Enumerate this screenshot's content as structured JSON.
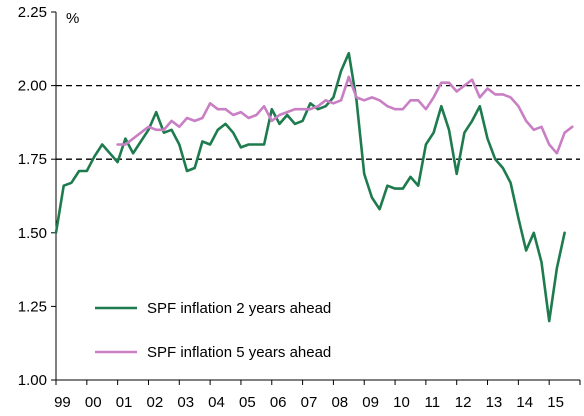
{
  "chart_data": {
    "type": "line",
    "ylabel": "%",
    "ylim": [
      1.0,
      2.25
    ],
    "y_ticks": [
      "1.00",
      "1.25",
      "1.50",
      "1.75",
      "2.00",
      "2.25"
    ],
    "x_ticks": [
      "99",
      "00",
      "01",
      "02",
      "03",
      "04",
      "05",
      "06",
      "07",
      "08",
      "09",
      "10",
      "11",
      "12",
      "13",
      "14",
      "15"
    ],
    "x_range": [
      1999.0,
      2016.0
    ],
    "reference_lines": [
      1.75,
      2.0
    ],
    "legend_position": "lower-left",
    "series": [
      {
        "name": "SPF inflation 2 years ahead",
        "color": "#1e7b4e",
        "x": [
          1999.0,
          1999.25,
          1999.5,
          1999.75,
          2000.0,
          2000.25,
          2000.5,
          2000.75,
          2001.0,
          2001.25,
          2001.5,
          2001.75,
          2002.0,
          2002.25,
          2002.5,
          2002.75,
          2003.0,
          2003.25,
          2003.5,
          2003.75,
          2004.0,
          2004.25,
          2004.5,
          2004.75,
          2005.0,
          2005.25,
          2005.5,
          2005.75,
          2006.0,
          2006.25,
          2006.5,
          2006.75,
          2007.0,
          2007.25,
          2007.5,
          2007.75,
          2008.0,
          2008.25,
          2008.5,
          2008.75,
          2009.0,
          2009.25,
          2009.5,
          2009.75,
          2010.0,
          2010.25,
          2010.5,
          2010.75,
          2011.0,
          2011.25,
          2011.5,
          2011.75,
          2012.0,
          2012.25,
          2012.5,
          2012.75,
          2013.0,
          2013.25,
          2013.5,
          2013.75,
          2014.0,
          2014.25,
          2014.5,
          2014.75,
          2015.0,
          2015.25,
          2015.5
        ],
        "values": [
          1.5,
          1.66,
          1.67,
          1.71,
          1.71,
          1.76,
          1.8,
          1.77,
          1.74,
          1.82,
          1.77,
          1.81,
          1.85,
          1.91,
          1.84,
          1.85,
          1.8,
          1.71,
          1.72,
          1.81,
          1.8,
          1.85,
          1.87,
          1.84,
          1.79,
          1.8,
          1.8,
          1.8,
          1.92,
          1.87,
          1.9,
          1.87,
          1.88,
          1.94,
          1.92,
          1.93,
          1.96,
          2.05,
          2.11,
          1.95,
          1.7,
          1.62,
          1.58,
          1.66,
          1.65,
          1.65,
          1.69,
          1.66,
          1.8,
          1.84,
          1.93,
          1.85,
          1.7,
          1.84,
          1.88,
          1.93,
          1.82,
          1.75,
          1.72,
          1.67,
          1.55,
          1.44,
          1.5,
          1.4,
          1.2,
          1.38,
          1.5
        ]
      },
      {
        "name": "SPF inflation 5 years ahead",
        "color": "#c97fc4",
        "x": [
          2001.0,
          2001.25,
          2001.5,
          2001.75,
          2002.0,
          2002.25,
          2002.5,
          2002.75,
          2003.0,
          2003.25,
          2003.5,
          2003.75,
          2004.0,
          2004.25,
          2004.5,
          2004.75,
          2005.0,
          2005.25,
          2005.5,
          2005.75,
          2006.0,
          2006.25,
          2006.5,
          2006.75,
          2007.0,
          2007.25,
          2007.5,
          2007.75,
          2008.0,
          2008.25,
          2008.5,
          2008.75,
          2009.0,
          2009.25,
          2009.5,
          2009.75,
          2010.0,
          2010.25,
          2010.5,
          2010.75,
          2011.0,
          2011.25,
          2011.5,
          2011.75,
          2012.0,
          2012.25,
          2012.5,
          2012.75,
          2013.0,
          2013.25,
          2013.5,
          2013.75,
          2014.0,
          2014.25,
          2014.5,
          2014.75,
          2015.0,
          2015.25,
          2015.5,
          2015.75
        ],
        "values": [
          1.8,
          1.8,
          1.82,
          1.84,
          1.86,
          1.85,
          1.85,
          1.88,
          1.86,
          1.89,
          1.88,
          1.89,
          1.94,
          1.92,
          1.92,
          1.9,
          1.91,
          1.89,
          1.9,
          1.93,
          1.88,
          1.9,
          1.91,
          1.92,
          1.92,
          1.92,
          1.93,
          1.95,
          1.94,
          1.95,
          2.03,
          1.96,
          1.95,
          1.96,
          1.95,
          1.93,
          1.92,
          1.92,
          1.95,
          1.95,
          1.92,
          1.96,
          2.01,
          2.01,
          1.98,
          2.0,
          2.02,
          1.96,
          1.99,
          1.97,
          1.97,
          1.96,
          1.93,
          1.88,
          1.85,
          1.86,
          1.8,
          1.77,
          1.84,
          1.86
        ]
      }
    ]
  }
}
